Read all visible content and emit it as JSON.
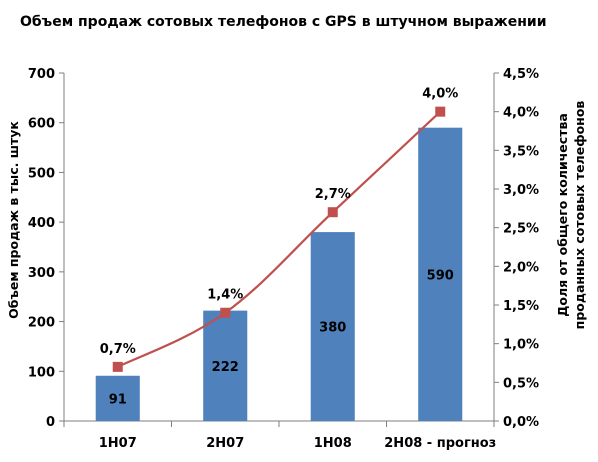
{
  "chart_data": {
    "type": "bar+line",
    "title": "Объем продаж сотовых телефонов с GPS в штучном выражении",
    "categories": [
      "1H07",
      "2H07",
      "1H08",
      "2H08 - прогноз"
    ],
    "bars": {
      "values": [
        91,
        222,
        380,
        590
      ],
      "labels": [
        "91",
        "222",
        "380",
        "590"
      ],
      "color": "#4F81BD"
    },
    "line": {
      "values": [
        0.7,
        1.4,
        2.7,
        4.0
      ],
      "labels": [
        "0,7%",
        "1,4%",
        "2,7%",
        "4,0%"
      ],
      "color": "#C0504D"
    },
    "y_left": {
      "label": "Объем продаж в тыс. штук",
      "ticks": [
        "0",
        "100",
        "200",
        "300",
        "400",
        "500",
        "600",
        "700"
      ],
      "ylim": [
        0,
        700
      ]
    },
    "y_right": {
      "label_line1": "Доля от общего количества",
      "label_line2": "проданных сотовых телефонов",
      "ticks": [
        "0,0%",
        "0,5%",
        "1,0%",
        "1,5%",
        "2,0%",
        "2,5%",
        "3,0%",
        "3,5%",
        "4,0%",
        "4,5%"
      ],
      "ylim": [
        0,
        4.5
      ]
    },
    "grid": false,
    "legend": "none"
  }
}
